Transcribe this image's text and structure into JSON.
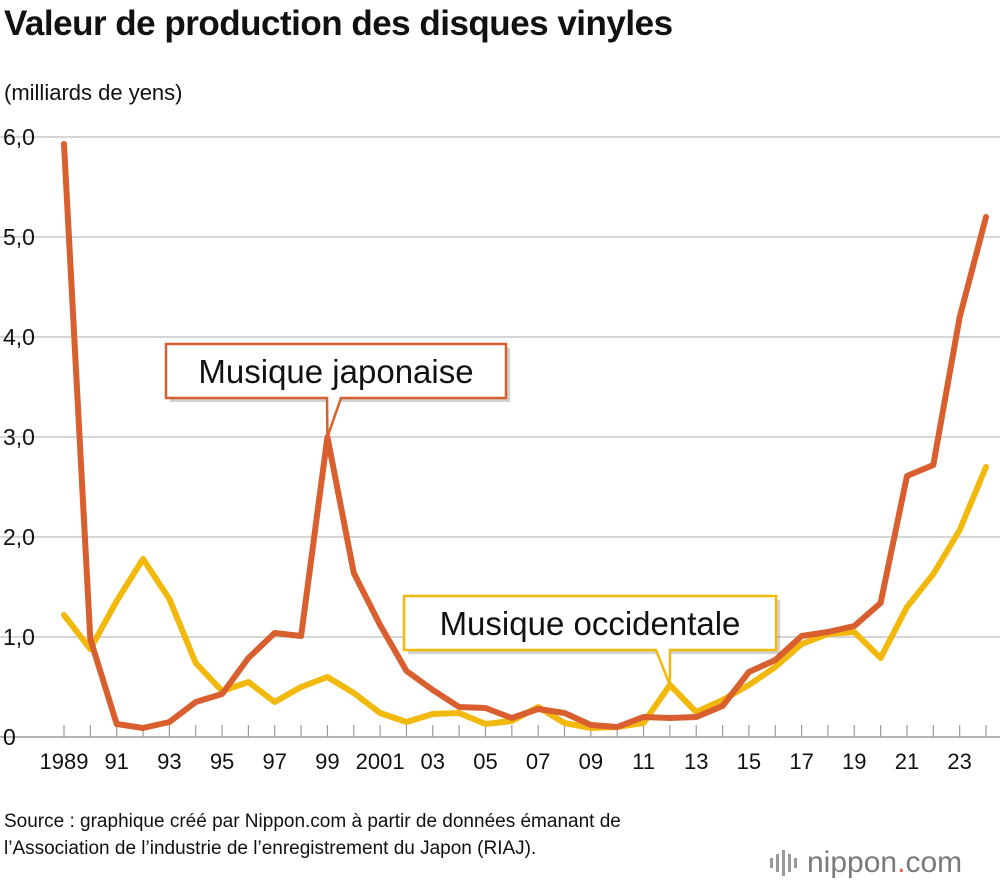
{
  "header": {
    "title": "Valeur de production des disques vinyles",
    "unit": "(milliards de yens)"
  },
  "footer": {
    "source": "Source : graphique créé par Nippon.com à partir de données émanant de l’Association de l’industrie de l’enregistrement du Japon (RIAJ).",
    "logo_main": "nippon",
    "logo_dot": ".",
    "logo_tld": "com"
  },
  "chart_data": {
    "type": "line",
    "title": "Valeur de production des disques vinyles",
    "ylabel": "(milliards de yens)",
    "xlabel": "",
    "x": [
      1989,
      1990,
      1991,
      1992,
      1993,
      1994,
      1995,
      1996,
      1997,
      1998,
      1999,
      2000,
      2001,
      2002,
      2003,
      2004,
      2005,
      2006,
      2007,
      2008,
      2009,
      2010,
      2011,
      2012,
      2013,
      2014,
      2015,
      2016,
      2017,
      2018,
      2019,
      2020,
      2021,
      2022,
      2023,
      2024
    ],
    "x_tick_labels": [
      {
        "year": 1989,
        "label": "1989"
      },
      {
        "year": 1991,
        "label": "91"
      },
      {
        "year": 1993,
        "label": "93"
      },
      {
        "year": 1995,
        "label": "95"
      },
      {
        "year": 1997,
        "label": "97"
      },
      {
        "year": 1999,
        "label": "99"
      },
      {
        "year": 2001,
        "label": "2001"
      },
      {
        "year": 2003,
        "label": "03"
      },
      {
        "year": 2005,
        "label": "05"
      },
      {
        "year": 2007,
        "label": "07"
      },
      {
        "year": 2009,
        "label": "09"
      },
      {
        "year": 2011,
        "label": "11"
      },
      {
        "year": 2013,
        "label": "13"
      },
      {
        "year": 2015,
        "label": "15"
      },
      {
        "year": 2017,
        "label": "17"
      },
      {
        "year": 2019,
        "label": "19"
      },
      {
        "year": 2021,
        "label": "21"
      },
      {
        "year": 2023,
        "label": "23"
      }
    ],
    "y_ticks": [
      {
        "value": 0,
        "label": "0"
      },
      {
        "value": 1,
        "label": "1,0"
      },
      {
        "value": 2,
        "label": "2,0"
      },
      {
        "value": 3,
        "label": "3,0"
      },
      {
        "value": 4,
        "label": "4,0"
      },
      {
        "value": 5,
        "label": "5,0"
      },
      {
        "value": 6,
        "label": "6,0"
      }
    ],
    "ylim": [
      0,
      6
    ],
    "grid": true,
    "series": [
      {
        "name": "Musique occidentale",
        "color": "#f2b90c",
        "values": [
          1.22,
          0.88,
          1.36,
          1.78,
          1.38,
          0.74,
          0.46,
          0.55,
          0.35,
          0.5,
          0.6,
          0.44,
          0.24,
          0.15,
          0.23,
          0.24,
          0.13,
          0.16,
          0.3,
          0.14,
          0.09,
          0.1,
          0.14,
          0.52,
          0.25,
          0.37,
          0.52,
          0.7,
          0.93,
          1.03,
          1.05,
          0.79,
          1.3,
          1.63,
          2.07,
          2.7
        ],
        "label_anchor_year": 2012
      },
      {
        "name": "Musique japonaise",
        "color": "#d95f2e",
        "values": [
          5.93,
          0.98,
          0.13,
          0.09,
          0.15,
          0.35,
          0.43,
          0.79,
          1.04,
          1.01,
          3.0,
          1.64,
          1.12,
          0.66,
          0.47,
          0.3,
          0.29,
          0.19,
          0.28,
          0.24,
          0.12,
          0.1,
          0.2,
          0.19,
          0.2,
          0.31,
          0.65,
          0.77,
          1.01,
          1.05,
          1.11,
          1.34,
          2.61,
          2.72,
          4.2,
          5.2
        ],
        "label_anchor_year": 1999
      }
    ]
  }
}
